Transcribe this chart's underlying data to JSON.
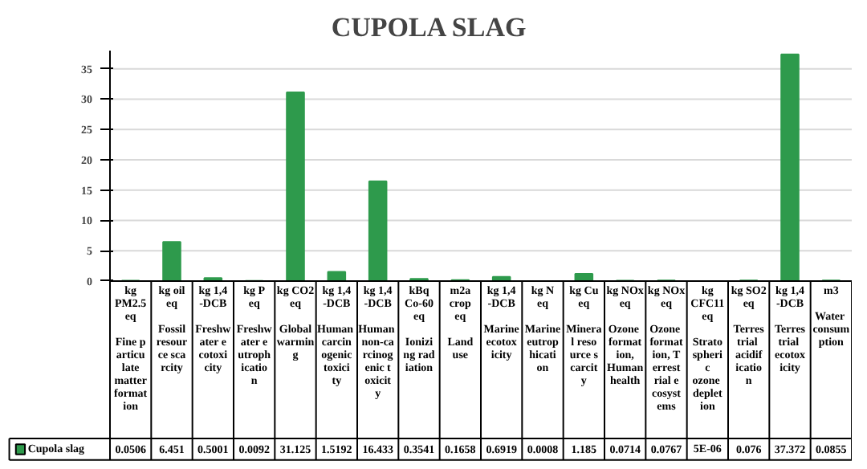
{
  "chart_data": {
    "type": "bar",
    "title": "CUPOLA SLAG",
    "categories": [
      "kg PM2.5 eq\nFine particulate matter formation",
      "kg oil eq\nFossil resource scarcity",
      "kg 1,4-DCB\nFreshwater ecotoxicity",
      "kg P eq\nFreshwater eutrophication",
      "kg CO2 eq\nGlobal warming",
      "kg 1,4-DCB\nHuman carcinogenic toxicity",
      "kg 1,4-DCB\nHuman non-carcinogenic toxicity",
      "kBq Co-60 eq\nIonizing radiation",
      "m2a crop eq\nLand use",
      "kg 1,4-DCB\nMarine ecotoxicity",
      "kg N eq\nMarine eutrophication",
      "kg Cu eq\nMineral resource scarcity",
      "kg NOx eq\nOzone formation, Human health",
      "kg NOx eq\nOzone formation, Terrestrial ecosystems",
      "kg CFC11 eq\nStratospheric ozone depletion",
      "kg SO2 eq\nTerrestrial acidification",
      "kg 1,4-DCB\nTerrestrial ecotoxicity",
      "m3\nWater consumption"
    ],
    "series": [
      {
        "name": "Cupola slag",
        "color": "#2e9a4c",
        "values": [
          0.0506,
          6.451,
          0.5001,
          0.0092,
          31.125,
          1.5192,
          16.433,
          0.3541,
          0.1658,
          0.6919,
          0.0008,
          1.185,
          0.0714,
          0.0767,
          5e-06,
          0.076,
          37.372,
          0.0855
        ],
        "value_labels": [
          "0.0506",
          "6.451",
          "0.5001",
          "0.0092",
          "31.125",
          "1.5192",
          "16.433",
          "0.3541",
          "0.1658",
          "0.6919",
          "0.0008",
          "1.185",
          "0.0714",
          "0.0767",
          "5E-06",
          "0.076",
          "37.372",
          "0.0855"
        ]
      }
    ],
    "ylim": [
      0,
      38
    ],
    "yticks": [
      0,
      5,
      10,
      15,
      20,
      25,
      30,
      35
    ],
    "grid": "y",
    "legend": "bottom"
  }
}
